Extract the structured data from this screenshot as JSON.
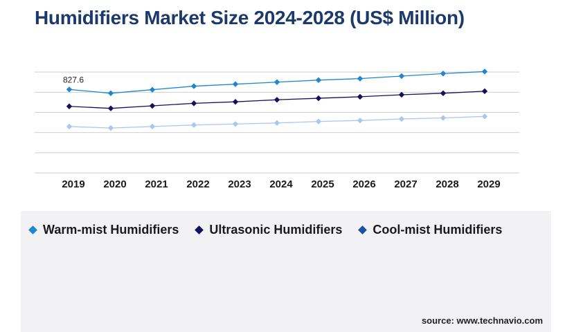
{
  "title": "Humidifiers Market Size 2024-2028 (US$ Million)",
  "source": "source: www.technavio.com",
  "chart_data": {
    "type": "line",
    "x": [
      "2019",
      "2020",
      "2021",
      "2022",
      "2023",
      "2024",
      "2025",
      "2026",
      "2027",
      "2028",
      "2029"
    ],
    "ylim": [
      0,
      1200
    ],
    "grid": true,
    "legend_position": "bottom",
    "series": [
      {
        "name": "Warm-mist Humidifiers",
        "color": "#1f86d0",
        "values": [
          827.6,
          790,
          825,
          860,
          880,
          900,
          920,
          935,
          960,
          985,
          1005
        ],
        "labels": [
          "827.6",
          "",
          "",
          "",
          "",
          "",
          "",
          "",
          "",
          "",
          ""
        ]
      },
      {
        "name": "Ultrasonic Humidifiers",
        "color": "#14105e",
        "values": [
          660,
          640,
          665,
          690,
          705,
          725,
          740,
          755,
          775,
          790,
          810
        ],
        "labels": [
          "",
          "",
          "",
          "",
          "",
          "",
          "",
          "",
          "",
          "",
          ""
        ]
      },
      {
        "name": "Cool-mist Humidifiers",
        "color": "#a9c8f0",
        "legend_color": "#1c4fa6",
        "values": [
          460,
          445,
          460,
          475,
          485,
          495,
          510,
          520,
          535,
          545,
          560
        ],
        "labels": [
          "",
          "",
          "",
          "",
          "",
          "",
          "",
          "",
          "",
          "",
          ""
        ]
      }
    ]
  }
}
